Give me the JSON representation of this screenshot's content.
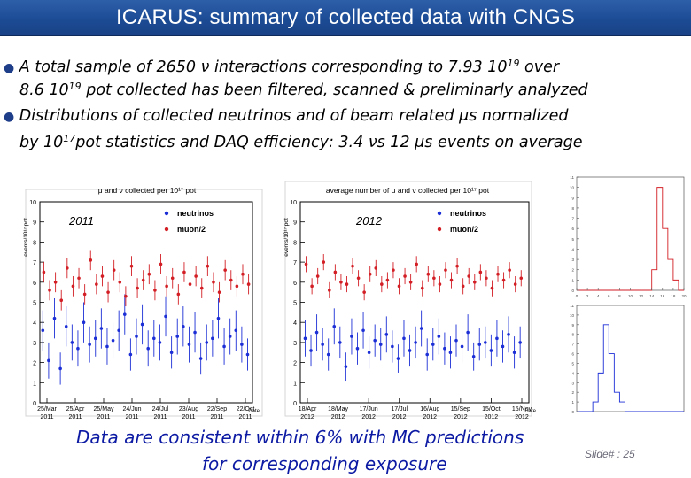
{
  "slide": {
    "title": "ICARUS: summary of collected data with CNGS",
    "bullet1_line1_a": "A total sample of 2650 ",
    "bullet1_nu": "ν",
    "bullet1_line1_b": " interactions corresponding  to 7.93 10",
    "bullet1_line1_sup": "19",
    "bullet1_line1_c": " over",
    "bullet1_line2_a": "8.6 10",
    "bullet1_line2_sup": "19",
    "bullet1_line2_b": " pot collected has been filtered, scanned & preliminarly analyzed",
    "bullet2_line1_a": "Distributions of collected neutrinos and of beam related ",
    "bullet2_mu": "μs",
    "bullet2_line1_b": " normalized",
    "bullet2_line2_a": "by 10",
    "bullet2_line2_sup": "17",
    "bullet2_line2_b": "pot statistics and DAQ efficiency: 3.4 ",
    "bullet2_nus": "νs",
    "bullet2_line2_c": " 12 ",
    "bullet2_mus2": "μs",
    "bullet2_line2_d": " events on average",
    "conclusion_line1": "Data are consistent within 6% with MC predictions",
    "conclusion_line2": "for corresponding exposure",
    "slide_number": "Slide# : 25"
  },
  "colors": {
    "title_bg": "#1b4a93",
    "neutrinos": "#1c2fd6",
    "muon": "#d21e24",
    "conclusion": "#0c1aa3",
    "hist_red": "#d21e24",
    "hist_blue": "#1c2fd6"
  },
  "chart_data": [
    {
      "type": "scatter",
      "title": "μ and ν collected per 10¹⁷ pot",
      "ylabel": "events/10¹⁷ pot",
      "xlabel": "Date",
      "annotation": "2011",
      "ylim": [
        0,
        10
      ],
      "yticks": [
        "0",
        "1",
        "2",
        "3",
        "4",
        "5",
        "6",
        "7",
        "8",
        "9",
        "10"
      ],
      "xticks": [
        "25/Mar 2011",
        "25/Apr 2011",
        "25/May 2011",
        "24/Jun 2011",
        "24/Jul 2011",
        "23/Aug 2011",
        "22/Sep 2011",
        "22/Oct 2011"
      ],
      "xlim_days": [
        0,
        218
      ],
      "legend": [
        "neutrinos",
        "muon/2"
      ],
      "series": [
        {
          "name": "neutrinos",
          "x": [
            3,
            9,
            15,
            21,
            27,
            33,
            39,
            45,
            51,
            57,
            63,
            69,
            75,
            81,
            87,
            93,
            99,
            105,
            111,
            117,
            123,
            129,
            135,
            141,
            147,
            153,
            159,
            165,
            171,
            177,
            183,
            189,
            195,
            201,
            207,
            213
          ],
          "y": [
            3.6,
            2.1,
            4.2,
            1.7,
            3.8,
            3.0,
            2.7,
            4.0,
            2.9,
            3.2,
            3.7,
            2.8,
            3.1,
            3.6,
            4.4,
            2.4,
            3.3,
            3.9,
            2.7,
            3.2,
            3.0,
            4.3,
            2.5,
            3.3,
            3.8,
            2.9,
            3.5,
            2.2,
            3.0,
            3.2,
            4.2,
            2.8,
            3.3,
            3.6,
            2.9,
            2.4
          ],
          "err": [
            1.0,
            0.9,
            1.0,
            0.8,
            1.0,
            0.9,
            0.9,
            1.0,
            0.9,
            0.9,
            1.0,
            0.9,
            0.9,
            1.0,
            1.0,
            0.8,
            0.9,
            1.0,
            0.9,
            0.9,
            0.9,
            1.0,
            0.8,
            0.9,
            1.0,
            0.9,
            1.0,
            0.8,
            0.9,
            0.9,
            1.0,
            0.9,
            0.9,
            1.0,
            0.9,
            0.8
          ]
        },
        {
          "name": "muon/2",
          "x": [
            4,
            10,
            16,
            22,
            28,
            34,
            40,
            46,
            52,
            58,
            64,
            70,
            76,
            82,
            88,
            94,
            100,
            106,
            112,
            118,
            124,
            130,
            136,
            142,
            148,
            154,
            160,
            166,
            172,
            178,
            184,
            190,
            196,
            202,
            208,
            214
          ],
          "y": [
            6.5,
            5.6,
            6.0,
            5.1,
            6.7,
            5.8,
            6.2,
            5.4,
            7.1,
            5.9,
            6.3,
            5.5,
            6.6,
            6.0,
            5.3,
            6.8,
            5.7,
            6.1,
            6.4,
            5.6,
            6.9,
            5.8,
            6.2,
            5.4,
            6.5,
            5.9,
            6.3,
            5.7,
            6.8,
            6.0,
            5.5,
            6.6,
            6.1,
            5.8,
            6.4,
            5.9
          ],
          "err": [
            0.5,
            0.5,
            0.5,
            0.5,
            0.5,
            0.5,
            0.5,
            0.5,
            0.5,
            0.5,
            0.5,
            0.5,
            0.5,
            0.5,
            0.5,
            0.5,
            0.5,
            0.5,
            0.5,
            0.5,
            0.5,
            0.5,
            0.5,
            0.5,
            0.5,
            0.5,
            0.5,
            0.5,
            0.5,
            0.5,
            0.5,
            0.5,
            0.5,
            0.5,
            0.5,
            0.5
          ]
        }
      ]
    },
    {
      "type": "scatter",
      "title": "average number of μ and ν collected per 10¹⁷ pot",
      "ylabel": "events/10¹⁷ pot",
      "xlabel": "Date",
      "annotation": "2012",
      "ylim": [
        0,
        10
      ],
      "yticks": [
        "0",
        "1",
        "2",
        "3",
        "4",
        "5",
        "6",
        "7",
        "8",
        "9",
        "10"
      ],
      "xticks": [
        "18/Apr 2012",
        "18/May 2012",
        "17/Jun 2012",
        "17/Jul 2012",
        "16/Aug 2012",
        "15/Sep 2012",
        "15/Oct 2012",
        "15/Nov 2012"
      ],
      "xlim_days": [
        0,
        236
      ],
      "legend": [
        "neutrinos",
        "muon/2"
      ],
      "series": [
        {
          "name": "neutrinos",
          "x": [
            5,
            11,
            17,
            23,
            29,
            35,
            41,
            47,
            53,
            59,
            65,
            71,
            77,
            83,
            89,
            95,
            101,
            107,
            113,
            119,
            125,
            131,
            137,
            143,
            149,
            155,
            161,
            167,
            173,
            179,
            185,
            191,
            197,
            203,
            209,
            215,
            221,
            227
          ],
          "y": [
            3.2,
            2.6,
            3.5,
            2.9,
            2.4,
            3.8,
            3.0,
            1.8,
            3.3,
            2.7,
            3.6,
            2.5,
            3.1,
            2.9,
            3.4,
            2.8,
            2.2,
            3.2,
            2.6,
            3.0,
            3.7,
            2.4,
            2.9,
            3.3,
            2.7,
            2.5,
            3.1,
            2.8,
            3.5,
            2.3,
            2.9,
            3.0,
            2.6,
            3.2,
            2.8,
            3.4,
            2.5,
            3.0
          ],
          "err": [
            0.9,
            0.8,
            0.9,
            0.8,
            0.8,
            0.9,
            0.8,
            0.7,
            0.9,
            0.8,
            0.9,
            0.8,
            0.8,
            0.8,
            0.9,
            0.8,
            0.7,
            0.9,
            0.8,
            0.8,
            0.9,
            0.8,
            0.8,
            0.9,
            0.8,
            0.8,
            0.8,
            0.8,
            0.9,
            0.7,
            0.8,
            0.8,
            0.8,
            0.9,
            0.8,
            0.9,
            0.8,
            0.8
          ]
        },
        {
          "name": "muon/2",
          "x": [
            6,
            12,
            18,
            24,
            30,
            36,
            42,
            48,
            54,
            60,
            66,
            72,
            78,
            84,
            90,
            96,
            102,
            108,
            114,
            120,
            126,
            132,
            138,
            144,
            150,
            156,
            162,
            168,
            174,
            180,
            186,
            192,
            198,
            204,
            210,
            216,
            222,
            228
          ],
          "y": [
            6.9,
            5.8,
            6.3,
            7.0,
            5.6,
            6.5,
            6.0,
            5.9,
            6.8,
            6.2,
            5.5,
            6.4,
            6.7,
            5.9,
            6.1,
            6.6,
            5.8,
            6.3,
            6.0,
            6.9,
            5.7,
            6.4,
            6.2,
            5.9,
            6.6,
            6.1,
            6.8,
            5.8,
            6.3,
            6.0,
            6.5,
            6.2,
            5.7,
            6.4,
            6.1,
            6.6,
            5.9,
            6.2
          ],
          "err": [
            0.4,
            0.4,
            0.4,
            0.4,
            0.4,
            0.4,
            0.4,
            0.4,
            0.4,
            0.4,
            0.4,
            0.4,
            0.4,
            0.4,
            0.4,
            0.4,
            0.4,
            0.4,
            0.4,
            0.4,
            0.4,
            0.4,
            0.4,
            0.4,
            0.4,
            0.4,
            0.4,
            0.4,
            0.4,
            0.4,
            0.4,
            0.4,
            0.4,
            0.4,
            0.4,
            0.4,
            0.4,
            0.4
          ]
        }
      ]
    },
    {
      "type": "bar",
      "title": "",
      "bins": [
        0,
        1,
        2,
        3,
        4,
        5,
        6,
        7,
        8,
        9,
        10,
        11,
        12,
        13,
        14,
        15,
        16,
        17,
        18,
        19
      ],
      "values": [
        0,
        0,
        0,
        0,
        0,
        0,
        0,
        0,
        0,
        0,
        0,
        0,
        0,
        0,
        2,
        10,
        6,
        3,
        1,
        0
      ],
      "ylim": [
        0,
        11
      ],
      "yticks": [
        "0",
        "1",
        "2",
        "3",
        "4",
        "5",
        "6",
        "7",
        "8",
        "9",
        "10",
        "11"
      ],
      "xticks": [
        "0",
        "2",
        "4",
        "6",
        "8",
        "10",
        "12",
        "14",
        "16",
        "18",
        "20"
      ]
    },
    {
      "type": "bar",
      "title": "",
      "bins": [
        0,
        1,
        2,
        3,
        4,
        5,
        6,
        7,
        8,
        9,
        10,
        11,
        12,
        13,
        14,
        15,
        16,
        17,
        18,
        19
      ],
      "values": [
        0,
        0,
        0,
        1,
        4,
        9,
        6,
        2,
        1,
        0,
        0,
        0,
        0,
        0,
        0,
        0,
        0,
        0,
        0,
        0
      ],
      "ylim": [
        0,
        11
      ],
      "yticks": [
        "0",
        "1",
        "2",
        "3",
        "4",
        "5",
        "6",
        "7",
        "8",
        "9",
        "10",
        "11"
      ],
      "xticks": []
    }
  ]
}
